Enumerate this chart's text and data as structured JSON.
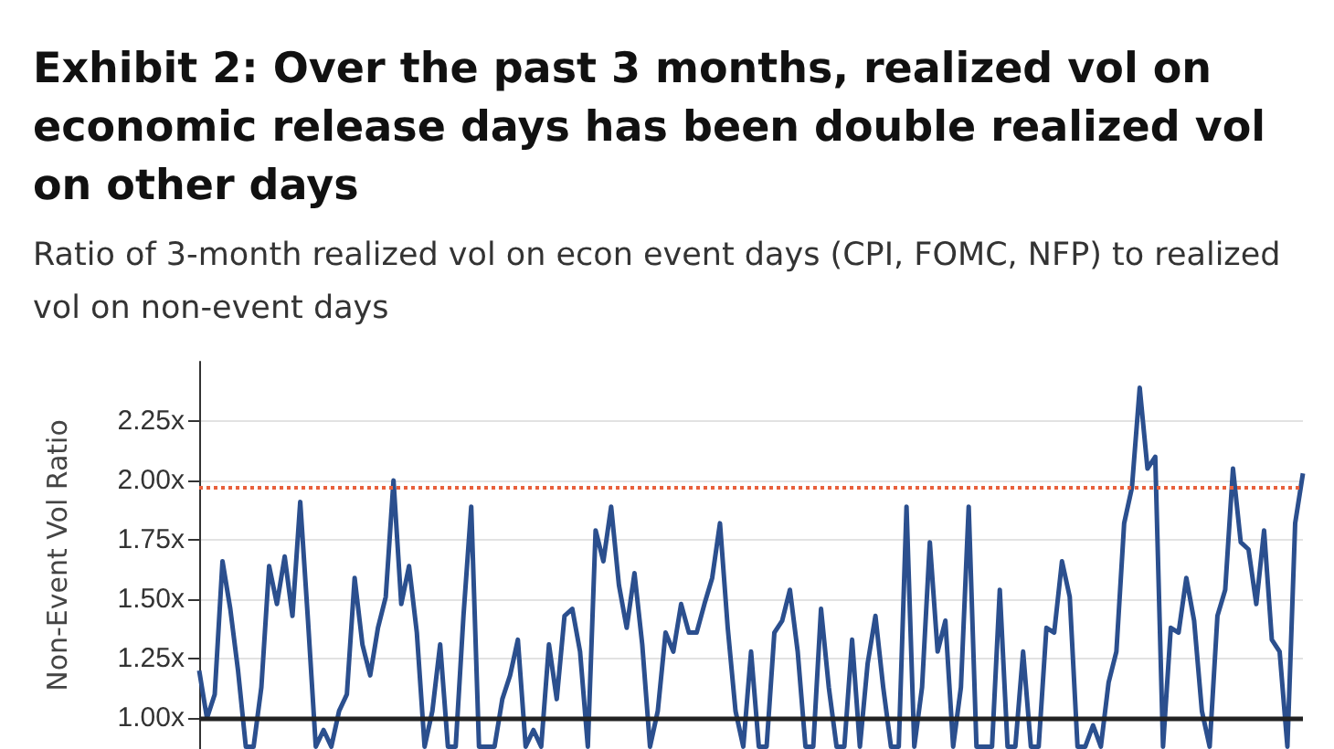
{
  "chart_data": {
    "type": "line",
    "title": "Exhibit 2: Over the past 3 months, realized vol on economic release days has been double realized vol on other days",
    "subtitle": "Ratio of 3-month realized vol on econ event days (CPI, FOMC, NFP) to realized vol on non-event days",
    "ylabel": "Non-Event Vol Ratio",
    "categories": [
      null,
      null,
      null,
      null,
      null,
      null,
      null,
      null,
      null,
      null,
      null,
      null,
      null,
      null,
      null,
      null,
      null,
      null,
      null,
      null,
      null,
      null,
      null,
      null,
      null,
      null,
      null,
      null,
      null,
      null,
      null,
      null,
      null,
      null,
      null,
      null,
      null,
      null,
      null,
      null,
      null,
      null,
      null,
      null,
      null,
      null,
      null,
      null,
      null,
      null,
      null,
      null,
      null,
      null,
      null,
      null,
      null,
      null,
      null,
      null,
      null,
      null,
      null,
      null,
      null,
      null,
      null,
      null,
      null,
      null,
      null,
      null,
      null,
      null,
      null,
      null,
      null,
      null,
      null,
      null,
      null,
      null,
      null,
      null,
      null,
      null,
      null,
      null,
      null,
      null,
      null,
      null,
      null,
      null,
      null,
      null,
      null,
      null,
      null,
      null,
      null,
      null,
      null,
      null,
      null,
      null,
      null,
      null,
      null,
      null,
      null,
      null,
      null,
      null,
      null,
      null,
      null,
      null,
      null,
      null,
      null,
      null,
      null,
      null,
      null,
      null,
      null,
      null,
      null,
      null,
      null,
      null,
      null,
      null,
      null,
      null,
      null,
      null,
      null,
      null,
      null,
      null,
      null
    ],
    "series": [
      {
        "color": "#2b4f8e",
        "values": [
          1.2,
          1.0,
          1.1,
          1.66,
          1.46,
          1.2,
          0.88,
          0.88,
          1.13,
          1.64,
          1.48,
          1.68,
          1.43,
          1.91,
          1.41,
          0.88,
          0.95,
          0.88,
          1.03,
          1.1,
          1.59,
          1.31,
          1.18,
          1.38,
          1.51,
          2.0,
          1.48,
          1.64,
          1.36,
          0.88,
          1.03,
          1.31,
          0.88,
          0.88,
          1.43,
          1.89,
          0.88,
          0.88,
          0.88,
          1.08,
          1.18,
          1.33,
          0.88,
          0.95,
          0.88,
          1.31,
          1.08,
          1.43,
          1.46,
          1.28,
          0.88,
          1.79,
          1.66,
          1.89,
          1.56,
          1.38,
          1.61,
          1.31,
          0.88,
          1.03,
          1.36,
          1.28,
          1.48,
          1.36,
          1.36,
          1.48,
          1.59,
          1.82,
          1.38,
          1.03,
          0.88,
          1.28,
          0.88,
          0.88,
          1.36,
          1.41,
          1.54,
          1.28,
          0.88,
          0.88,
          1.46,
          1.13,
          0.88,
          0.88,
          1.33,
          0.88,
          1.23,
          1.43,
          1.13,
          0.88,
          0.88,
          1.89,
          0.88,
          1.13,
          1.74,
          1.28,
          1.41,
          0.88,
          1.13,
          1.89,
          0.88,
          0.88,
          0.88,
          1.54,
          0.88,
          0.88,
          1.28,
          0.88,
          0.88,
          1.38,
          1.36,
          1.66,
          1.51,
          0.88,
          0.88,
          0.97,
          0.88,
          1.15,
          1.28,
          1.82,
          1.97,
          2.39,
          2.05,
          2.1,
          0.88,
          1.38,
          1.36,
          1.59,
          1.41,
          1.03,
          0.88,
          1.43,
          1.54,
          2.05,
          1.74,
          1.71,
          1.48,
          1.79,
          1.33,
          1.28,
          0.88,
          1.82,
          2.03
        ]
      }
    ],
    "ylim": [
      0.87,
      2.5
    ],
    "yticks": [
      {
        "value": 1,
        "label": "1.00x"
      },
      {
        "value": 1.25,
        "label": "1.25x"
      },
      {
        "value": 1.5,
        "label": "1.50x"
      },
      {
        "value": 1.75,
        "label": "1.75x"
      },
      {
        "value": 2,
        "label": "2.00x"
      },
      {
        "value": 2.25,
        "label": "2.25x"
      }
    ],
    "ref_lines": [
      {
        "axis": "y",
        "value": 1,
        "color": "#222222",
        "line_style": "solid"
      },
      {
        "axis": "y",
        "value": 1.97,
        "color": "#e8603c",
        "line_style": "dotted"
      }
    ],
    "grid": "y",
    "line_style": "solid",
    "tick_labels": "y"
  }
}
